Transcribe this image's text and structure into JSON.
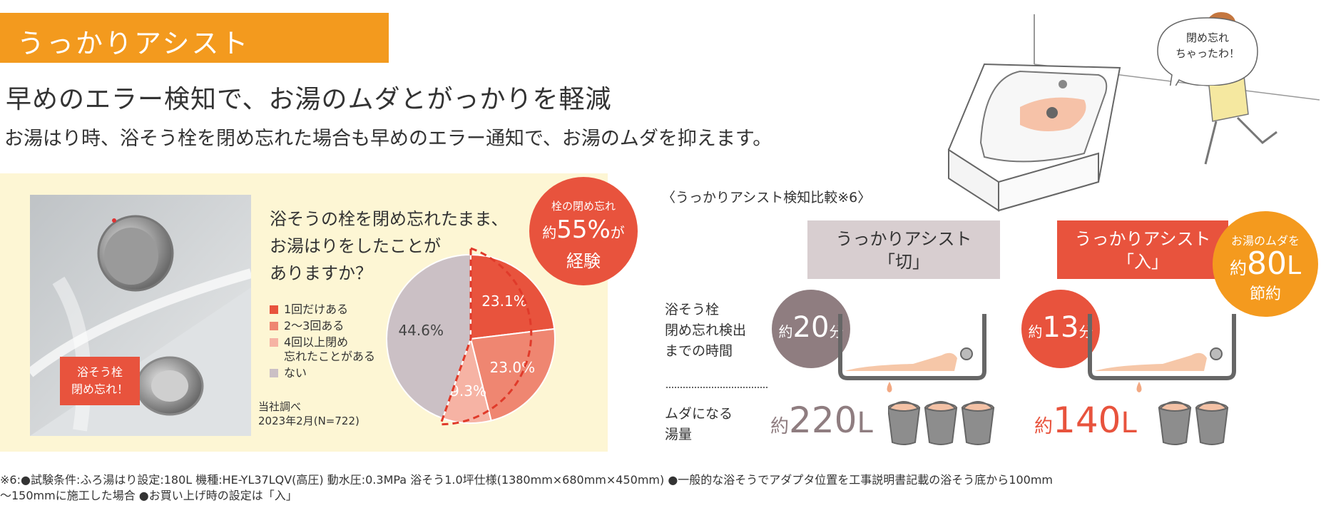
{
  "header": {
    "title": "うっかりアシスト",
    "headline": "早めのエラー検知で、お湯のムダとがっかりを軽減",
    "subheadline": "お湯はり時、浴そう栓を閉め忘れた場合も早めのエラー通知で、お湯のムダを抑えます。"
  },
  "illustration": {
    "speech_bubble": "閉め忘れ\nちゃったわ！"
  },
  "photo": {
    "label": "浴そう栓\n閉め忘れ！"
  },
  "survey": {
    "question": "浴そうの栓を閉め忘れたまま、\nお湯はりをしたことが\nありますか？",
    "legend": [
      {
        "label": "1回だけある",
        "color": "#e8533d"
      },
      {
        "label": "2〜3回ある",
        "color": "#ef8671"
      },
      {
        "label": "4回以上閉め\n忘れたことがある",
        "color": "#f6b3a4"
      },
      {
        "label": "ない",
        "color": "#cbc0c5"
      }
    ],
    "source": "当社調べ\n2023年2月(N=722)",
    "badge": {
      "line1": "栓の閉め忘れ",
      "prefix": "約",
      "value": "55%",
      "suffix": "が",
      "line3": "経験"
    }
  },
  "chart_data": {
    "type": "pie",
    "categories": [
      "1回だけある",
      "2〜3回ある",
      "4回以上閉め忘れたことがある",
      "ない"
    ],
    "values": [
      23.1,
      23.0,
      9.3,
      44.6
    ],
    "labels": [
      "23.1%",
      "23.0%",
      "9.3%",
      "44.6%"
    ],
    "colors": [
      "#e8533d",
      "#ef8671",
      "#f6b3a4",
      "#cbc0c5"
    ]
  },
  "comparison": {
    "title": "〈うっかりアシスト検知比較※6〉",
    "off_label": "うっかりアシスト\n「切」",
    "on_label": "うっかりアシスト\n「入」",
    "row1_label": "浴そう栓\n閉め忘れ検出\nまでの時間",
    "row2_label": "ムダになる\n湯量",
    "off_time": {
      "prefix": "約",
      "value": "20",
      "unit": "分"
    },
    "on_time": {
      "prefix": "約",
      "value": "13",
      "unit": "分"
    },
    "off_volume": {
      "prefix": "約",
      "value": "220",
      "unit": "L"
    },
    "on_volume": {
      "prefix": "約",
      "value": "140",
      "unit": "L"
    },
    "saving": {
      "line1": "お湯のムダを",
      "prefix": "約",
      "value": "80",
      "unit": "L",
      "line3": "節約"
    },
    "colors": {
      "off": "#8f7d80",
      "on": "#e8533d",
      "save": "#f49a1e"
    }
  },
  "footnote": "※6:●試験条件:ふろ湯はり設定:180L 機種:HE-YL37LQV(高圧) 動水圧:0.3MPa 浴そう1.0坪仕様(1380mm×680mm×450mm) ●一般的な浴そうでアダプタ位置を工事説明書記載の浴そう底から100mm\n〜150mmに施工した場合 ●お買い上げ時の設定は「入」"
}
